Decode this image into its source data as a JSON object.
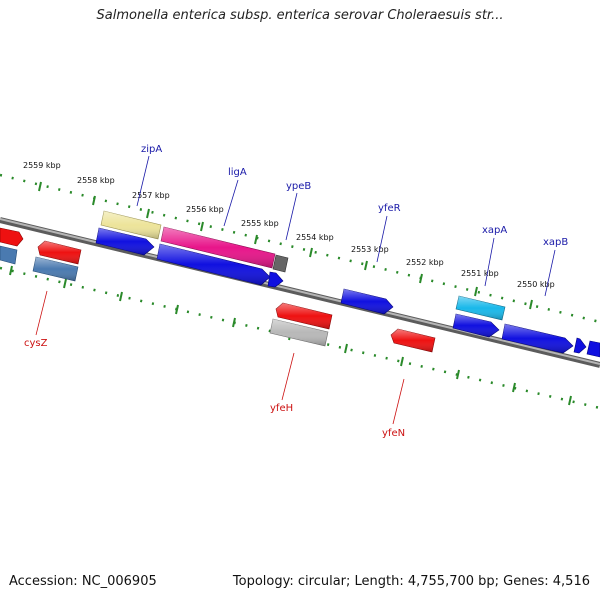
{
  "header": {
    "title": "Salmonella enterica subsp. enterica serovar Choleraesuis str..."
  },
  "footer": {
    "accession": "Accession: NC_006905",
    "summary": "Topology: circular; Length: 4,755,700 bp; Genes: 4,516"
  },
  "scale_labels": [
    "2559 kbp",
    "2558 kbp",
    "2557 kbp",
    "2556 kbp",
    "2555 kbp",
    "2554 kbp",
    "2553 kbp",
    "2552 kbp",
    "2551 kbp",
    "2550 kbp"
  ],
  "forward_genes": [
    "zipA",
    "ligA",
    "ypeB",
    "yfeR",
    "xapA",
    "xapB"
  ],
  "reverse_genes": [
    "cysZ",
    "yfeH",
    "yfeN"
  ],
  "colors": {
    "backbone": "#7a7a7a",
    "tick": "#2a8a2a",
    "cds_blue": "#1010e0",
    "cds_red": "#ee1111",
    "steel": "#4a7ab0",
    "pink": "#e8158a",
    "khaki": "#ede49a",
    "cyan": "#19b8ea",
    "gray": "#b8b8b8",
    "dark": "#666666"
  }
}
